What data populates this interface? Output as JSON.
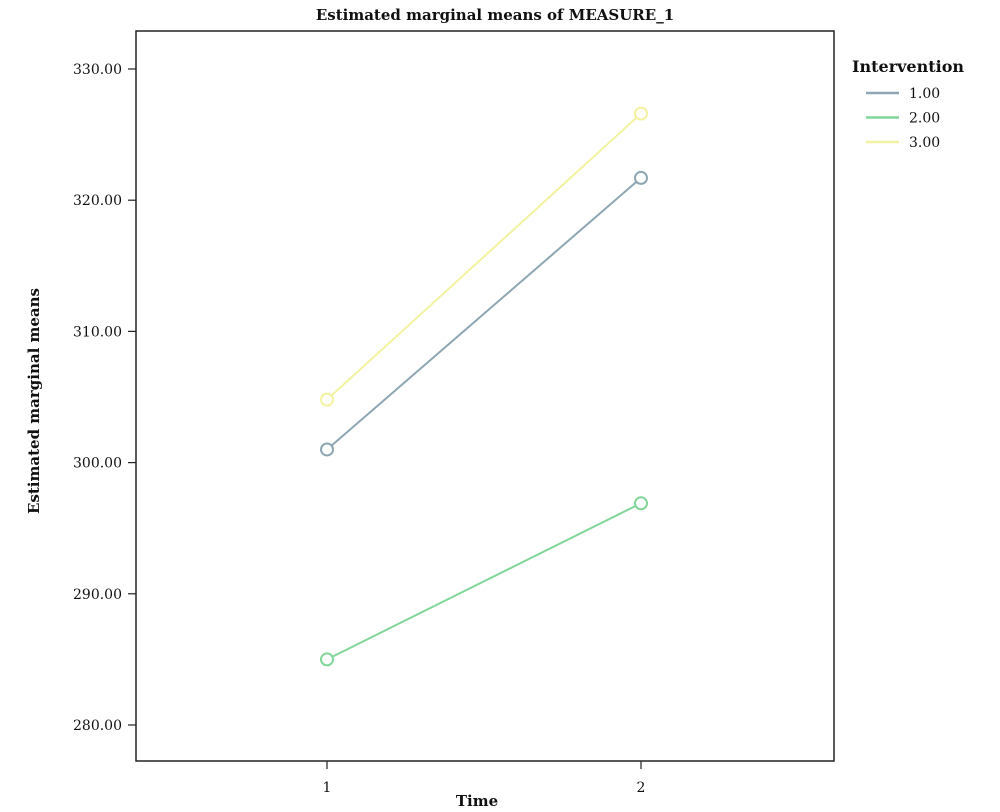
{
  "chart_data": {
    "type": "line",
    "title": "Estimated marginal means of MEASURE_1",
    "xlabel": "Time",
    "ylabel": "Estimated marginal means",
    "categories": [
      "1",
      "2"
    ],
    "ylim": [
      277.5,
      332.5
    ],
    "yticks": [
      280,
      290,
      300,
      310,
      320,
      330
    ],
    "ytick_labels": [
      "280.00",
      "290.00",
      "300.00",
      "310.00",
      "320.00",
      "330.00"
    ],
    "grid": false,
    "legend": {
      "title": "Intervention",
      "placement": "top-right"
    },
    "series": [
      {
        "name": "1.00",
        "color": "#8ea6b4",
        "values": [
          301.0,
          321.7
        ]
      },
      {
        "name": "2.00",
        "color": "#82d69a",
        "values": [
          285.0,
          296.9
        ]
      },
      {
        "name": "3.00",
        "color": "#f3f2a0",
        "values": [
          304.8,
          326.6
        ]
      }
    ]
  }
}
